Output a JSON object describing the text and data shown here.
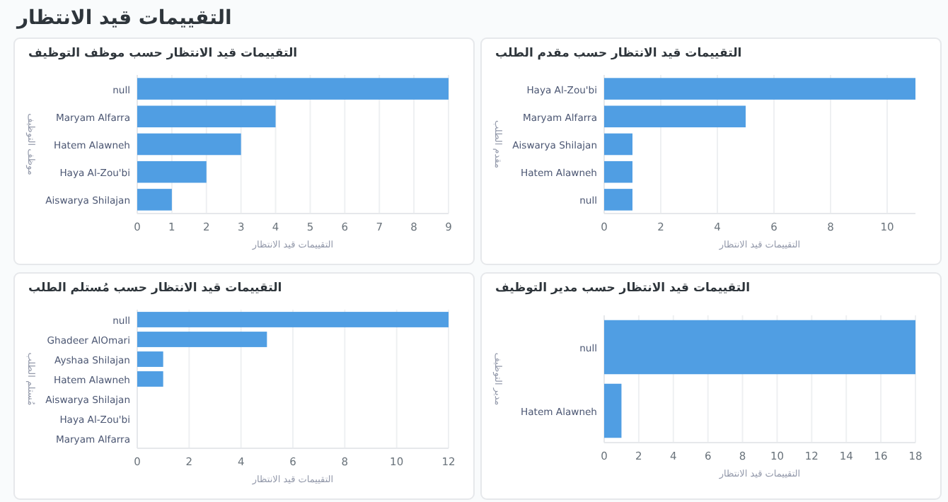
{
  "chart_data": [
    {
      "type": "other",
      "title": "التقييمات قيد الانتظار"
    },
    {
      "type": "bar",
      "orientation": "horizontal",
      "title": "التقييمات قيد الانتظار حسب موظف التوظيف",
      "xlabel": "التقييمات قيد الانتظار",
      "ylabel": "موظف التوظيف",
      "categories": [
        "null",
        "Maryam Alfarra",
        "Hatem Alawneh",
        "Haya Al-Zou'bi",
        "Aiswarya Shilajan"
      ],
      "values": [
        9,
        4,
        3,
        2,
        1
      ],
      "color": "#509ee3",
      "xlim": [
        0,
        9
      ],
      "xticks": [
        0,
        1,
        2,
        3,
        4,
        5,
        6,
        7,
        8,
        9
      ],
      "grid": "x"
    },
    {
      "type": "bar",
      "orientation": "horizontal",
      "title": "التقييمات قيد الانتظار حسب مقدم الطلب",
      "xlabel": "التقييمات قيد الانتظار",
      "ylabel": "مقدم الطلب",
      "categories": [
        "Haya Al-Zou'bi",
        "Maryam Alfarra",
        "Aiswarya Shilajan",
        "Hatem Alawneh",
        "null"
      ],
      "values": [
        11,
        5,
        1,
        1,
        1
      ],
      "color": "#509ee3",
      "xlim": [
        0,
        11
      ],
      "xticks": [
        0,
        2,
        4,
        6,
        8,
        10
      ],
      "grid": "x"
    },
    {
      "type": "bar",
      "orientation": "horizontal",
      "title": "التقييمات قيد الانتظار حسب مُستلم الطلب",
      "xlabel": "التقييمات قيد الانتظار",
      "ylabel": "مُستلم الطلب",
      "categories": [
        "null",
        "Ghadeer AlOmari",
        "Ayshaa Shilajan",
        "Hatem Alawneh",
        "Aiswarya Shilajan",
        "Haya Al-Zou'bi",
        "Maryam Alfarra"
      ],
      "values": [
        12,
        5,
        1,
        1,
        0,
        0,
        0
      ],
      "color": "#509ee3",
      "xlim": [
        0,
        12
      ],
      "xticks": [
        0,
        2,
        4,
        6,
        8,
        10,
        12
      ],
      "grid": "x"
    },
    {
      "type": "bar",
      "orientation": "horizontal",
      "title": "التقييمات قيد الانتظار حسب مدير التوظيف",
      "xlabel": "التقييمات قيد الانتظار",
      "ylabel": "مدير التوظيف",
      "categories": [
        "null",
        "Hatem Alawneh"
      ],
      "values": [
        18,
        1
      ],
      "color": "#509ee3",
      "xlim": [
        0,
        18
      ],
      "xticks": [
        0,
        2,
        4,
        6,
        8,
        10,
        12,
        14,
        16,
        18
      ],
      "grid": "x"
    }
  ]
}
